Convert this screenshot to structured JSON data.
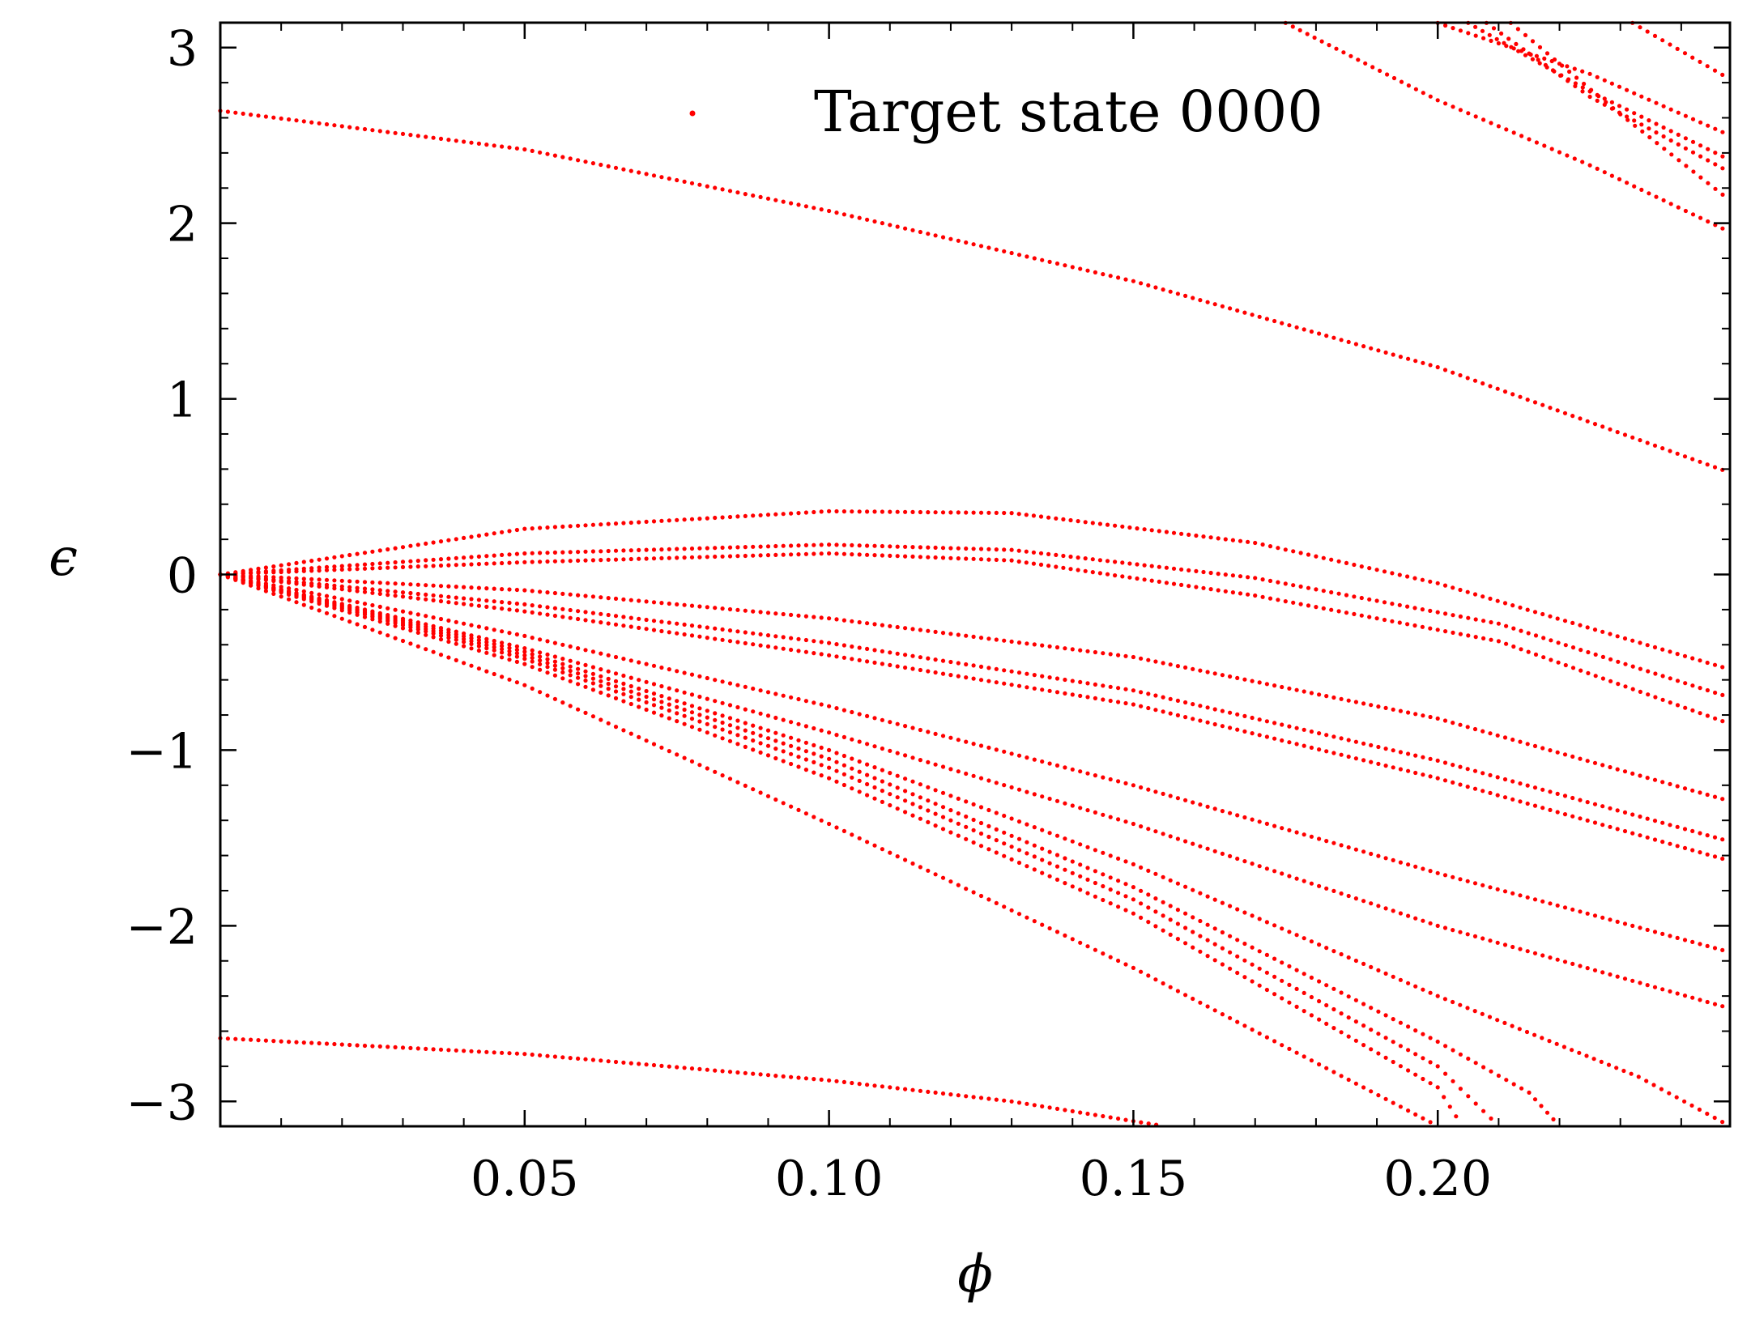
{
  "chart_data": {
    "type": "scatter",
    "title": "",
    "xlabel": "ϕ",
    "ylabel": "ϵ",
    "xlim": [
      0.0,
      0.248
    ],
    "ylim": [
      -3.14159,
      3.14159
    ],
    "x_ticks": [
      {
        "value": 0.05,
        "label": "0.05"
      },
      {
        "value": 0.1,
        "label": "0.10"
      },
      {
        "value": 0.15,
        "label": "0.15"
      },
      {
        "value": 0.2,
        "label": "0.20"
      }
    ],
    "x_minor_step": 0.01,
    "y_ticks": [
      {
        "value": 3,
        "label": "3"
      },
      {
        "value": 2,
        "label": "2"
      },
      {
        "value": 1,
        "label": "1"
      },
      {
        "value": 0,
        "label": "0"
      },
      {
        "value": -1,
        "label": "−1"
      },
      {
        "value": -2,
        "label": "−2"
      },
      {
        "value": -3,
        "label": "−3"
      }
    ],
    "y_minor_step": 0.2,
    "grid": false,
    "legend": {
      "position": "top-center",
      "label": "Target state 0000"
    },
    "series_color": "#ff0000",
    "bands": [
      {
        "points": [
          [
            0.0,
            2.64
          ],
          [
            0.05,
            2.42
          ],
          [
            0.1,
            2.07
          ],
          [
            0.15,
            1.67
          ],
          [
            0.2,
            1.18
          ],
          [
            0.248,
            0.58
          ]
        ]
      },
      {
        "points": [
          [
            0.0,
            -2.64
          ],
          [
            0.05,
            -2.73
          ],
          [
            0.1,
            -2.88
          ],
          [
            0.13,
            -3.0
          ],
          [
            0.155,
            -3.14
          ]
        ]
      },
      {
        "points": [
          [
            0.0,
            0.0
          ],
          [
            0.05,
            0.26
          ],
          [
            0.1,
            0.36
          ],
          [
            0.13,
            0.35
          ],
          [
            0.17,
            0.18
          ],
          [
            0.2,
            -0.05
          ],
          [
            0.248,
            -0.54
          ]
        ]
      },
      {
        "points": [
          [
            0.0,
            0.0
          ],
          [
            0.05,
            0.12
          ],
          [
            0.1,
            0.17
          ],
          [
            0.13,
            0.14
          ],
          [
            0.17,
            -0.02
          ],
          [
            0.21,
            -0.28
          ],
          [
            0.248,
            -0.7
          ]
        ]
      },
      {
        "points": [
          [
            0.0,
            0.0
          ],
          [
            0.05,
            0.07
          ],
          [
            0.1,
            0.12
          ],
          [
            0.13,
            0.08
          ],
          [
            0.17,
            -0.12
          ],
          [
            0.21,
            -0.38
          ],
          [
            0.248,
            -0.85
          ]
        ]
      },
      {
        "points": [
          [
            0.0,
            0.0
          ],
          [
            0.05,
            -0.09
          ],
          [
            0.1,
            -0.25
          ],
          [
            0.15,
            -0.47
          ],
          [
            0.2,
            -0.82
          ],
          [
            0.248,
            -1.29
          ]
        ]
      },
      {
        "points": [
          [
            0.0,
            0.0
          ],
          [
            0.05,
            -0.17
          ],
          [
            0.1,
            -0.39
          ],
          [
            0.15,
            -0.66
          ],
          [
            0.2,
            -1.06
          ],
          [
            0.248,
            -1.52
          ]
        ]
      },
      {
        "points": [
          [
            0.0,
            0.0
          ],
          [
            0.05,
            -0.21
          ],
          [
            0.1,
            -0.46
          ],
          [
            0.15,
            -0.74
          ],
          [
            0.2,
            -1.16
          ],
          [
            0.248,
            -1.63
          ]
        ]
      },
      {
        "points": [
          [
            0.0,
            0.0
          ],
          [
            0.05,
            -0.35
          ],
          [
            0.1,
            -0.75
          ],
          [
            0.15,
            -1.2
          ],
          [
            0.2,
            -1.7
          ],
          [
            0.248,
            -2.15
          ]
        ]
      },
      {
        "points": [
          [
            0.0,
            0.0
          ],
          [
            0.05,
            -0.42
          ],
          [
            0.1,
            -0.9
          ],
          [
            0.15,
            -1.42
          ],
          [
            0.2,
            -2.0
          ],
          [
            0.248,
            -2.47
          ]
        ]
      },
      {
        "points": [
          [
            0.0,
            0.0
          ],
          [
            0.05,
            -0.44
          ],
          [
            0.1,
            -1.0
          ],
          [
            0.15,
            -1.65
          ],
          [
            0.2,
            -2.4
          ],
          [
            0.233,
            -2.86
          ],
          [
            0.248,
            -3.14
          ]
        ]
      },
      {
        "points": [
          [
            0.0,
            0.0
          ],
          [
            0.05,
            -0.46
          ],
          [
            0.1,
            -1.05
          ],
          [
            0.15,
            -1.78
          ],
          [
            0.2,
            -2.66
          ],
          [
            0.215,
            -2.95
          ],
          [
            0.22,
            -3.14
          ]
        ]
      },
      {
        "points": [
          [
            0.0,
            0.0
          ],
          [
            0.05,
            -0.48
          ],
          [
            0.1,
            -1.1
          ],
          [
            0.15,
            -1.85
          ],
          [
            0.2,
            -2.8
          ],
          [
            0.21,
            -3.14
          ]
        ]
      },
      {
        "points": [
          [
            0.0,
            0.0
          ],
          [
            0.05,
            -0.51
          ],
          [
            0.1,
            -1.16
          ],
          [
            0.15,
            -1.93
          ],
          [
            0.2,
            -2.92
          ],
          [
            0.204,
            -3.14
          ]
        ]
      },
      {
        "points": [
          [
            0.0,
            0.0
          ],
          [
            0.05,
            -0.63
          ],
          [
            0.1,
            -1.42
          ],
          [
            0.15,
            -2.24
          ],
          [
            0.2,
            -3.14
          ]
        ]
      },
      {
        "points": [
          [
            0.175,
            3.14
          ],
          [
            0.2,
            2.7
          ],
          [
            0.225,
            2.33
          ],
          [
            0.248,
            1.95
          ]
        ]
      },
      {
        "points": [
          [
            0.2,
            3.14
          ],
          [
            0.225,
            2.85
          ],
          [
            0.248,
            2.5
          ]
        ]
      },
      {
        "points": [
          [
            0.205,
            3.14
          ],
          [
            0.225,
            2.75
          ],
          [
            0.248,
            2.36
          ]
        ]
      },
      {
        "points": [
          [
            0.208,
            3.14
          ],
          [
            0.225,
            2.72
          ],
          [
            0.248,
            2.29
          ]
        ]
      },
      {
        "points": [
          [
            0.212,
            3.14
          ],
          [
            0.23,
            2.62
          ],
          [
            0.248,
            2.13
          ]
        ]
      },
      {
        "points": [
          [
            0.232,
            3.14
          ],
          [
            0.248,
            2.82
          ]
        ]
      }
    ]
  }
}
